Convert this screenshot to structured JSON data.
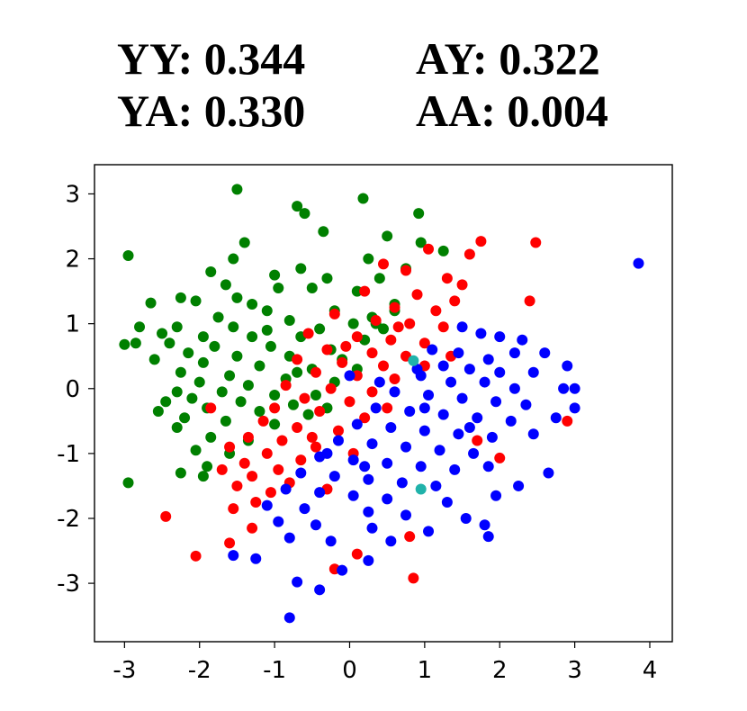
{
  "title": {
    "yy": "YY: 0.344",
    "ay": "AY: 0.322",
    "ya": "YA: 0.330",
    "aa": "AA: 0.004"
  },
  "chart_data": {
    "type": "scatter",
    "xlim": [
      -3.4,
      4.3
    ],
    "ylim": [
      -3.9,
      3.45
    ],
    "xticks": [
      -3,
      -2,
      -1,
      0,
      1,
      2,
      3,
      4
    ],
    "yticks": [
      3,
      2,
      1,
      0,
      -1,
      -2,
      -3
    ],
    "xtick_labels": [
      "-3",
      "-2",
      "-1",
      "0",
      "1",
      "2",
      "3",
      "4"
    ],
    "ytick_labels": [
      "3",
      "2",
      "1",
      "0",
      "-1",
      "-2",
      "-3"
    ],
    "grid": false,
    "series": [
      {
        "color": "#008000",
        "points": [
          [
            -1.5,
            3.07
          ],
          [
            0.18,
            2.93
          ],
          [
            -0.7,
            2.81
          ],
          [
            -0.6,
            2.7
          ],
          [
            0.92,
            2.7
          ],
          [
            -0.35,
            2.42
          ],
          [
            0.5,
            2.35
          ],
          [
            -1.4,
            2.25
          ],
          [
            0.95,
            2.25
          ],
          [
            1.25,
            2.12
          ],
          [
            -2.95,
            2.05
          ],
          [
            -1.55,
            2.0
          ],
          [
            0.25,
            2.0
          ],
          [
            -0.65,
            1.85
          ],
          [
            0.75,
            1.85
          ],
          [
            -1.85,
            1.8
          ],
          [
            -1.0,
            1.75
          ],
          [
            -0.3,
            1.7
          ],
          [
            0.4,
            1.7
          ],
          [
            -1.65,
            1.6
          ],
          [
            -0.5,
            1.55
          ],
          [
            0.1,
            1.5
          ],
          [
            -2.25,
            1.4
          ],
          [
            -2.05,
            1.35
          ],
          [
            -1.3,
            1.3
          ],
          [
            0.6,
            1.3
          ],
          [
            -2.65,
            1.32
          ],
          [
            -1.1,
            1.2
          ],
          [
            -0.2,
            1.2
          ],
          [
            0.3,
            1.1
          ],
          [
            -1.75,
            1.1
          ],
          [
            -0.8,
            1.05
          ],
          [
            0.05,
            1.0
          ],
          [
            -2.3,
            0.95
          ],
          [
            -1.55,
            0.95
          ],
          [
            -0.4,
            0.92
          ],
          [
            0.45,
            0.92
          ],
          [
            -2.8,
            0.95
          ],
          [
            -2.5,
            0.85
          ],
          [
            -1.95,
            0.8
          ],
          [
            -1.3,
            0.8
          ],
          [
            -0.65,
            0.8
          ],
          [
            0.2,
            0.75
          ],
          [
            -2.4,
            0.7
          ],
          [
            -2.85,
            0.7
          ],
          [
            -3.0,
            0.68
          ],
          [
            -1.8,
            0.65
          ],
          [
            -1.05,
            0.65
          ],
          [
            -0.25,
            0.6
          ],
          [
            -2.15,
            0.55
          ],
          [
            -1.5,
            0.5
          ],
          [
            -0.8,
            0.5
          ],
          [
            -0.1,
            0.45
          ],
          [
            -2.6,
            0.45
          ],
          [
            -1.95,
            0.4
          ],
          [
            -1.2,
            0.35
          ],
          [
            -0.5,
            0.3
          ],
          [
            -2.25,
            0.25
          ],
          [
            -1.6,
            0.2
          ],
          [
            -0.85,
            0.15
          ],
          [
            -0.2,
            0.1
          ],
          [
            -2.0,
            0.1
          ],
          [
            -1.35,
            0.05
          ],
          [
            -2.3,
            -0.05
          ],
          [
            -1.7,
            -0.05
          ],
          [
            -1.0,
            -0.1
          ],
          [
            -0.45,
            -0.1
          ],
          [
            -2.1,
            -0.15
          ],
          [
            -1.45,
            -0.2
          ],
          [
            -0.75,
            -0.25
          ],
          [
            -2.45,
            -0.2
          ],
          [
            -1.9,
            -0.3
          ],
          [
            -1.2,
            -0.35
          ],
          [
            -0.55,
            -0.4
          ],
          [
            -2.55,
            -0.35
          ],
          [
            -2.2,
            -0.45
          ],
          [
            -1.65,
            -0.5
          ],
          [
            -1.0,
            -0.55
          ],
          [
            -2.3,
            -0.6
          ],
          [
            -1.85,
            -0.75
          ],
          [
            -1.35,
            -0.8
          ],
          [
            -2.05,
            -0.95
          ],
          [
            -1.6,
            -1.0
          ],
          [
            -1.9,
            -1.2
          ],
          [
            -2.25,
            -1.3
          ],
          [
            -1.95,
            -1.35
          ],
          [
            -2.95,
            -1.45
          ],
          [
            -0.3,
            -0.3
          ],
          [
            0.1,
            0.3
          ],
          [
            0.35,
            1.0
          ],
          [
            -1.1,
            0.9
          ],
          [
            -0.7,
            0.25
          ],
          [
            -1.5,
            1.4
          ],
          [
            -0.95,
            1.55
          ],
          [
            0.6,
            1.2
          ]
        ]
      },
      {
        "color": "#ff0000",
        "points": [
          [
            1.75,
            2.27
          ],
          [
            2.48,
            2.25
          ],
          [
            1.6,
            2.07
          ],
          [
            1.05,
            2.15
          ],
          [
            0.45,
            1.92
          ],
          [
            0.75,
            1.82
          ],
          [
            1.3,
            1.7
          ],
          [
            1.5,
            1.6
          ],
          [
            2.4,
            1.35
          ],
          [
            0.2,
            1.5
          ],
          [
            0.9,
            1.45
          ],
          [
            1.4,
            1.35
          ],
          [
            0.6,
            1.25
          ],
          [
            1.15,
            1.2
          ],
          [
            -0.2,
            1.15
          ],
          [
            0.35,
            1.05
          ],
          [
            0.8,
            1.0
          ],
          [
            1.25,
            0.95
          ],
          [
            -0.55,
            0.85
          ],
          [
            0.1,
            0.8
          ],
          [
            0.55,
            0.75
          ],
          [
            1.0,
            0.7
          ],
          [
            -0.3,
            0.6
          ],
          [
            0.3,
            0.55
          ],
          [
            0.75,
            0.5
          ],
          [
            -0.7,
            0.45
          ],
          [
            -0.1,
            0.4
          ],
          [
            0.45,
            0.35
          ],
          [
            1.0,
            0.35
          ],
          [
            -0.45,
            0.25
          ],
          [
            0.1,
            0.2
          ],
          [
            0.6,
            0.15
          ],
          [
            -0.85,
            0.05
          ],
          [
            -0.25,
            0.0
          ],
          [
            0.3,
            -0.05
          ],
          [
            -0.6,
            -0.15
          ],
          [
            0.0,
            -0.2
          ],
          [
            -1.0,
            -0.3
          ],
          [
            -0.4,
            -0.35
          ],
          [
            -1.85,
            -0.3
          ],
          [
            -1.15,
            -0.5
          ],
          [
            -0.7,
            -0.6
          ],
          [
            -0.15,
            -0.65
          ],
          [
            -1.35,
            -0.75
          ],
          [
            -0.9,
            -0.8
          ],
          [
            -0.45,
            -0.9
          ],
          [
            -1.6,
            -0.9
          ],
          [
            -1.1,
            -1.0
          ],
          [
            -0.65,
            -1.1
          ],
          [
            -1.4,
            -1.15
          ],
          [
            -0.95,
            -1.25
          ],
          [
            -1.7,
            -1.25
          ],
          [
            -1.3,
            -1.35
          ],
          [
            -0.8,
            -1.45
          ],
          [
            -1.5,
            -1.5
          ],
          [
            -1.05,
            -1.6
          ],
          [
            -0.3,
            -1.55
          ],
          [
            -1.25,
            -1.75
          ],
          [
            -1.55,
            -1.85
          ],
          [
            -1.3,
            -2.15
          ],
          [
            -2.45,
            -1.97
          ],
          [
            -1.6,
            -2.38
          ],
          [
            -2.05,
            -2.58
          ],
          [
            -0.2,
            -2.78
          ],
          [
            0.1,
            -2.55
          ],
          [
            0.8,
            -2.28
          ],
          [
            0.85,
            -2.92
          ],
          [
            2.0,
            -1.07
          ],
          [
            2.9,
            -0.5
          ],
          [
            1.7,
            -0.8
          ],
          [
            0.2,
            -0.45
          ],
          [
            0.5,
            -0.3
          ],
          [
            -0.05,
            0.65
          ],
          [
            0.65,
            0.95
          ],
          [
            1.35,
            0.5
          ],
          [
            -0.5,
            -0.75
          ],
          [
            0.05,
            -1.0
          ]
        ]
      },
      {
        "color": "#0000ff",
        "points": [
          [
            3.85,
            1.93
          ],
          [
            1.5,
            0.95
          ],
          [
            1.75,
            0.85
          ],
          [
            2.0,
            0.8
          ],
          [
            2.3,
            0.75
          ],
          [
            2.2,
            0.55
          ],
          [
            2.6,
            0.55
          ],
          [
            1.1,
            0.6
          ],
          [
            1.45,
            0.55
          ],
          [
            1.85,
            0.45
          ],
          [
            2.9,
            0.35
          ],
          [
            1.25,
            0.35
          ],
          [
            1.6,
            0.3
          ],
          [
            2.0,
            0.25
          ],
          [
            2.45,
            0.25
          ],
          [
            0.95,
            0.2
          ],
          [
            1.35,
            0.1
          ],
          [
            1.8,
            0.1
          ],
          [
            2.2,
            0.0
          ],
          [
            2.85,
            0.0
          ],
          [
            3.0,
            0.0
          ],
          [
            0.6,
            -0.05
          ],
          [
            1.05,
            -0.1
          ],
          [
            1.5,
            -0.15
          ],
          [
            1.95,
            -0.2
          ],
          [
            2.35,
            -0.25
          ],
          [
            3.0,
            -0.3
          ],
          [
            0.35,
            -0.3
          ],
          [
            0.8,
            -0.35
          ],
          [
            1.25,
            -0.4
          ],
          [
            1.7,
            -0.45
          ],
          [
            2.15,
            -0.5
          ],
          [
            2.75,
            -0.45
          ],
          [
            0.1,
            -0.55
          ],
          [
            0.55,
            -0.6
          ],
          [
            1.0,
            -0.65
          ],
          [
            1.45,
            -0.7
          ],
          [
            1.9,
            -0.75
          ],
          [
            2.45,
            -0.7
          ],
          [
            -0.15,
            -0.8
          ],
          [
            0.3,
            -0.85
          ],
          [
            0.75,
            -0.9
          ],
          [
            1.2,
            -0.95
          ],
          [
            1.65,
            -1.0
          ],
          [
            -0.4,
            -1.05
          ],
          [
            0.05,
            -1.1
          ],
          [
            0.5,
            -1.15
          ],
          [
            0.95,
            -1.2
          ],
          [
            1.4,
            -1.25
          ],
          [
            1.85,
            -1.2
          ],
          [
            -0.65,
            -1.3
          ],
          [
            -0.2,
            -1.35
          ],
          [
            0.25,
            -1.4
          ],
          [
            0.7,
            -1.45
          ],
          [
            1.15,
            -1.5
          ],
          [
            2.25,
            -1.5
          ],
          [
            2.65,
            -1.3
          ],
          [
            -0.85,
            -1.55
          ],
          [
            -0.4,
            -1.6
          ],
          [
            0.05,
            -1.65
          ],
          [
            0.5,
            -1.7
          ],
          [
            1.3,
            -1.75
          ],
          [
            1.95,
            -1.65
          ],
          [
            -1.1,
            -1.8
          ],
          [
            -0.6,
            -1.85
          ],
          [
            0.25,
            -1.9
          ],
          [
            0.75,
            -1.95
          ],
          [
            1.55,
            -2.0
          ],
          [
            -0.95,
            -2.05
          ],
          [
            -0.45,
            -2.1
          ],
          [
            0.3,
            -2.15
          ],
          [
            1.05,
            -2.2
          ],
          [
            1.8,
            -2.1
          ],
          [
            -0.8,
            -2.3
          ],
          [
            -0.25,
            -2.35
          ],
          [
            0.55,
            -2.35
          ],
          [
            1.85,
            -2.28
          ],
          [
            -1.55,
            -2.57
          ],
          [
            -1.25,
            -2.62
          ],
          [
            0.25,
            -2.65
          ],
          [
            -0.1,
            -2.8
          ],
          [
            -0.7,
            -2.98
          ],
          [
            -0.4,
            -3.1
          ],
          [
            -0.8,
            -3.53
          ],
          [
            0.0,
            0.2
          ],
          [
            0.4,
            0.1
          ],
          [
            1.0,
            -0.3
          ],
          [
            1.6,
            -0.6
          ],
          [
            0.2,
            -1.2
          ],
          [
            -0.3,
            -1.0
          ],
          [
            0.9,
            0.3
          ]
        ]
      },
      {
        "color": "#20b2aa",
        "points": [
          [
            0.85,
            0.43
          ],
          [
            0.95,
            -1.55
          ]
        ]
      }
    ]
  }
}
